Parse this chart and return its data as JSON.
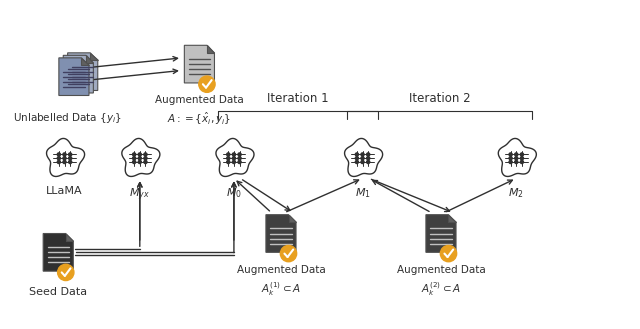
{
  "background_color": "#ffffff",
  "title": "",
  "iteration1_label": "Iteration 1",
  "iteration2_label": "Iteration 2",
  "llama_label": "LLaMA",
  "myx_label": "$M_{yx}$",
  "m0_label": "$M_0$",
  "m1_label": "$M_1$",
  "m2_label": "$M_2$",
  "unlabelled_label": "Unlabelled Data $\\{y_i\\}$",
  "augmented_top_label1": "Augmented Data",
  "augmented_top_label2": "$A:=\\{\\hat{x}_i, y_i\\}$",
  "augmented1_label1": "Augmented Data",
  "augmented1_label2": "$A_k^{(1)} \\subset A$",
  "augmented2_label1": "Augmented Data",
  "augmented2_label2": "$A_k^{(2)} \\subset A$",
  "seed_label": "Seed Data",
  "doc_color_light": "#b0b0b0",
  "doc_color_dark": "#404040",
  "brain_color": "#404040",
  "check_color": "#e8a020",
  "arrow_color": "#303030",
  "text_color": "#303030"
}
